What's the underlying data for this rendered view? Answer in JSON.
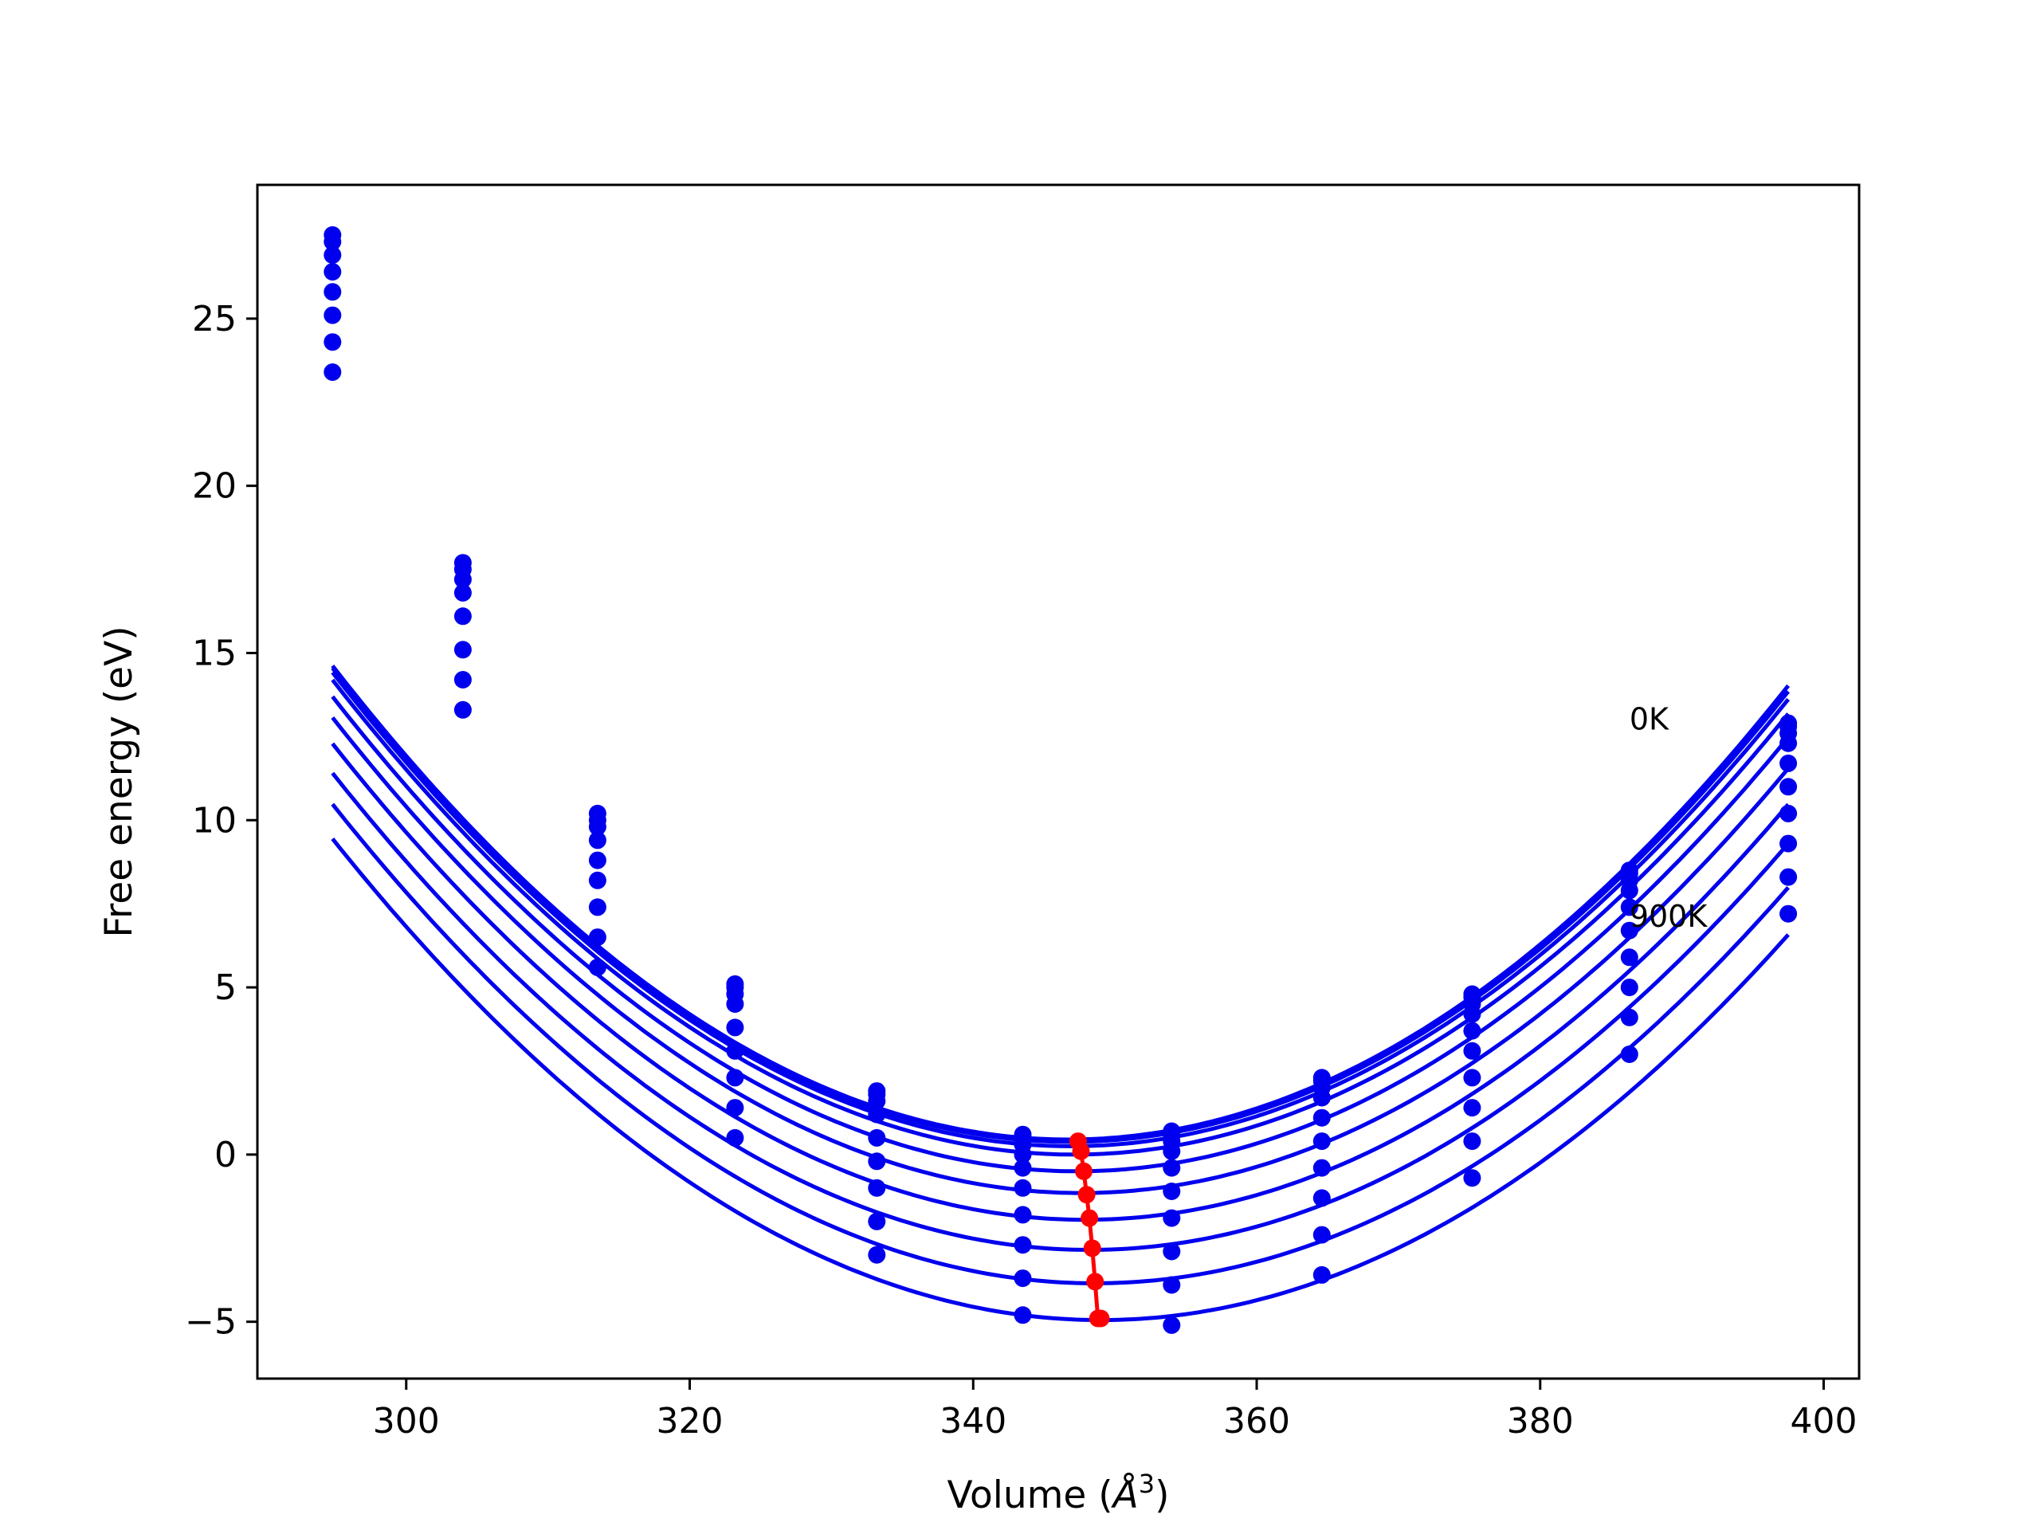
{
  "chart_data": {
    "type": "line",
    "title": "",
    "xlabel": "Volume (",
    "xlabel_symbol": "Å",
    "xlabel_power": "3",
    "xlabel_close": ")",
    "ylabel": "Free energy (eV)",
    "xlim": [
      289.5,
      402.5
    ],
    "ylim": [
      -6.7,
      29.0
    ],
    "xticks": [
      300,
      320,
      340,
      360,
      380,
      400
    ],
    "yticks": [
      -5,
      0,
      5,
      10,
      15,
      20,
      25
    ],
    "ytick_labels": [
      "−5",
      "0",
      "5",
      "10",
      "15",
      "20",
      "25"
    ],
    "grid": false,
    "legend": "none",
    "colors": {
      "curves": "#0000ee",
      "minima": "#ff0000",
      "axes": "#000000"
    },
    "x_points": [
      294.8,
      304.0,
      313.5,
      323.2,
      333.2,
      343.5,
      354.0,
      364.6,
      375.2,
      386.3,
      397.5
    ],
    "fit_x_range": [
      294.8,
      397.5
    ],
    "series": [
      {
        "v0": 346.7,
        "e0": 0.45,
        "a": 0.00526,
        "values": [
          27.5,
          17.7,
          10.2,
          5.1,
          1.9,
          0.6,
          0.7,
          2.3,
          4.8,
          8.5,
          12.9
        ]
      },
      {
        "v0": 346.8,
        "e0": 0.38,
        "a": 0.00524,
        "values": [
          27.3,
          17.5,
          10.0,
          5.0,
          1.8,
          0.5,
          0.6,
          2.2,
          4.7,
          8.4,
          12.8
        ]
      },
      {
        "v0": 346.9,
        "e0": 0.25,
        "a": 0.00522,
        "values": [
          26.9,
          17.2,
          9.8,
          4.8,
          1.6,
          0.3,
          0.4,
          2.0,
          4.5,
          8.2,
          12.6
        ]
      },
      {
        "v0": 347.1,
        "e0": 0.0,
        "a": 0.00519,
        "values": [
          26.4,
          16.8,
          9.4,
          4.5,
          1.2,
          0.0,
          0.1,
          1.7,
          4.2,
          7.9,
          12.3
        ]
      },
      {
        "v0": 347.3,
        "e0": -0.5,
        "a": 0.00515,
        "values": [
          25.8,
          16.1,
          8.8,
          3.8,
          0.5,
          -0.4,
          -0.4,
          1.1,
          3.7,
          7.4,
          11.7
        ]
      },
      {
        "v0": 347.6,
        "e0": -1.15,
        "a": 0.0051,
        "values": [
          25.1,
          15.1,
          8.2,
          3.1,
          -0.2,
          -1.0,
          -1.1,
          0.4,
          3.1,
          6.7,
          11.0
        ]
      },
      {
        "v0": 347.9,
        "e0": -1.95,
        "a": 0.00505,
        "values": [
          24.3,
          14.2,
          7.4,
          2.3,
          -1.0,
          -1.8,
          -1.9,
          -0.4,
          2.3,
          5.9,
          10.2
        ]
      },
      {
        "v0": 348.2,
        "e0": -2.85,
        "a": 0.005,
        "values": [
          23.4,
          13.3,
          6.5,
          1.4,
          -2.0,
          -2.7,
          -2.9,
          -1.3,
          1.4,
          5.0,
          9.3
        ]
      },
      {
        "v0": 348.6,
        "e0": -3.85,
        "a": 0.00495,
        "values": [
          null,
          null,
          5.6,
          0.5,
          -3.0,
          -3.7,
          -3.9,
          -2.4,
          0.4,
          4.1,
          8.3
        ]
      },
      {
        "v0": 349.0,
        "e0": -4.95,
        "a": 0.0049,
        "values": [
          null,
          null,
          null,
          null,
          null,
          -4.8,
          -5.1,
          -3.6,
          -0.7,
          3.0,
          7.2
        ]
      }
    ],
    "minima": {
      "x": [
        347.4,
        347.6,
        347.8,
        348.0,
        348.2,
        348.4,
        348.6,
        348.8,
        349.0
      ],
      "y": [
        0.4,
        0.1,
        -0.5,
        -1.2,
        -1.9,
        -2.8,
        -3.8,
        -4.9,
        -4.9
      ]
    },
    "annotations": [
      {
        "text": "0K",
        "x": 386.3,
        "y": 13.0
      },
      {
        "text": "900K",
        "x": 386.3,
        "y": 7.1
      }
    ]
  }
}
